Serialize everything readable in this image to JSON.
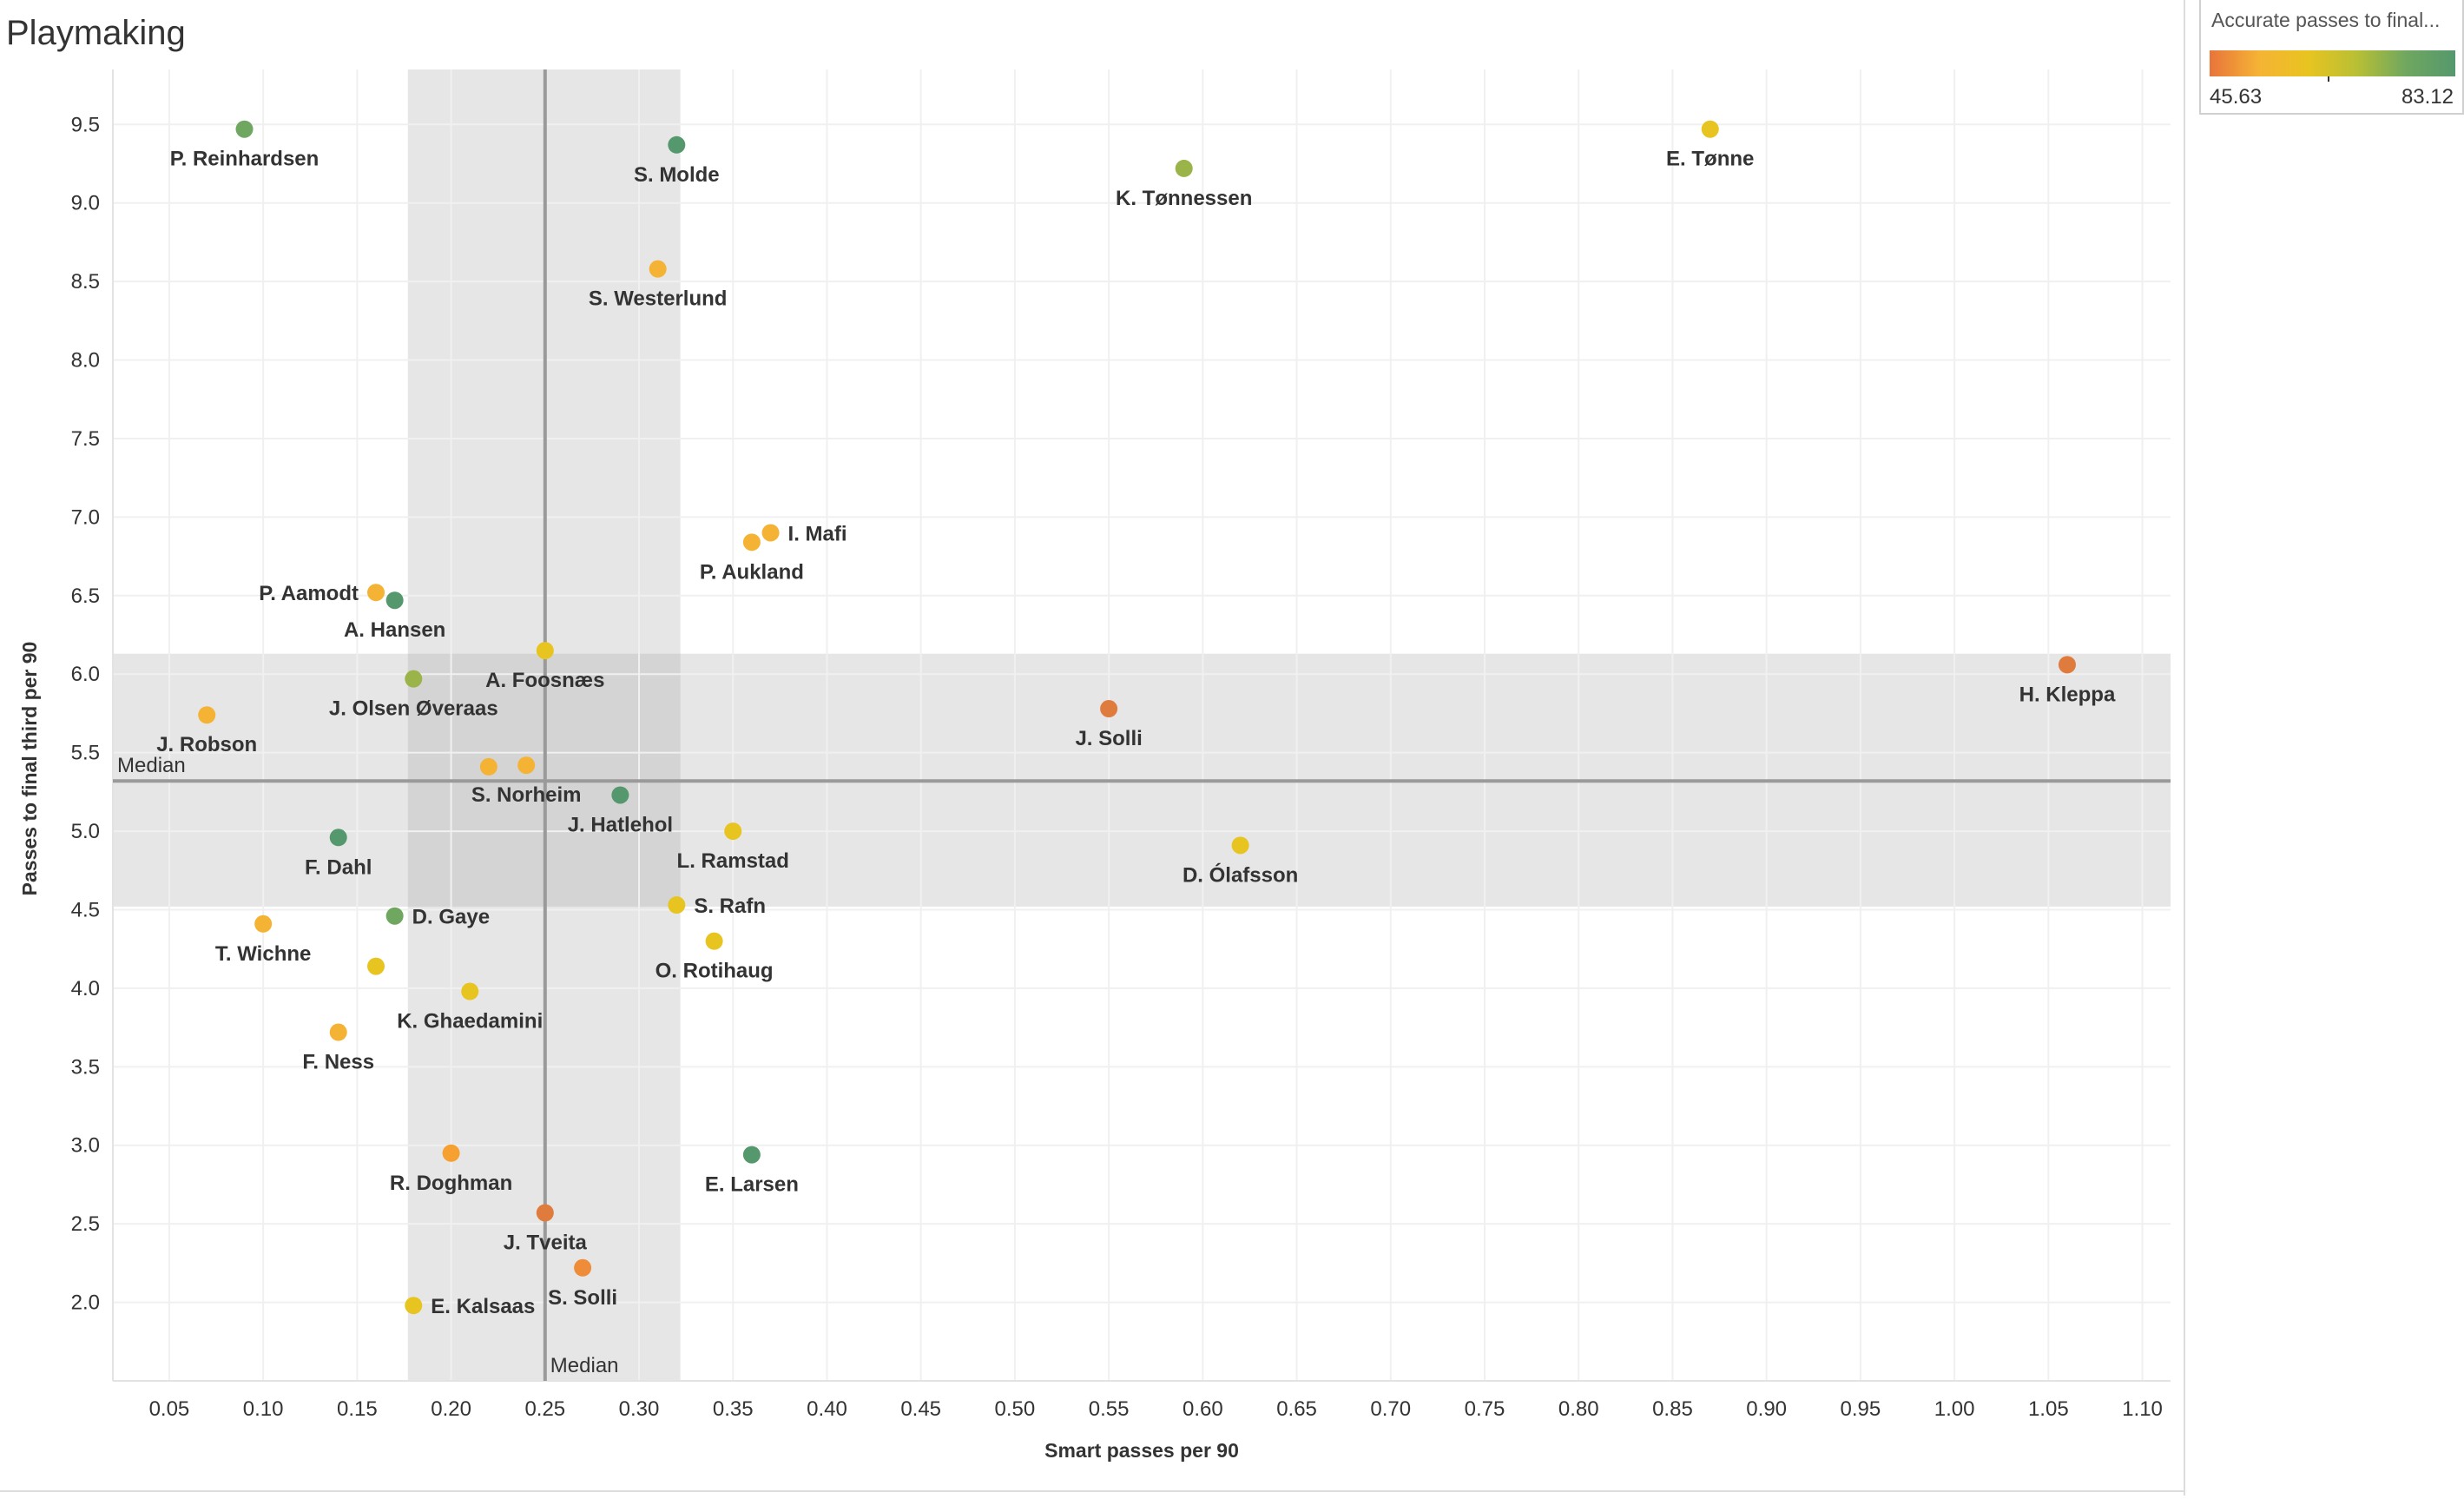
{
  "title": "Playmaking",
  "legend": {
    "title": "Accurate passes to final...",
    "min_label": "45.63",
    "max_label": "83.12",
    "colors": [
      "#e8743b",
      "#f5b335",
      "#e8c420",
      "#b8bf34",
      "#6fa760",
      "#55986d"
    ]
  },
  "chart_data": {
    "type": "scatter",
    "title": "Playmaking",
    "xlabel": "Smart passes per 90",
    "ylabel": "Passes to final third per 90",
    "xlim": [
      0.02,
      1.115
    ],
    "ylim": [
      1.5,
      9.85
    ],
    "x_ticks": [
      "0.05",
      "0.10",
      "0.15",
      "0.20",
      "0.25",
      "0.30",
      "0.35",
      "0.40",
      "0.45",
      "0.50",
      "0.55",
      "0.60",
      "0.65",
      "0.70",
      "0.75",
      "0.80",
      "0.85",
      "0.90",
      "0.95",
      "1.00",
      "1.05",
      "1.10"
    ],
    "y_ticks": [
      "2.0",
      "2.5",
      "3.0",
      "3.5",
      "4.0",
      "4.5",
      "5.0",
      "5.5",
      "6.0",
      "6.5",
      "7.0",
      "7.5",
      "8.0",
      "8.5",
      "9.0",
      "9.5"
    ],
    "grid": true,
    "x_median": {
      "value": 0.25,
      "label": "Median",
      "band": [
        0.177,
        0.322
      ]
    },
    "y_median": {
      "value": 5.32,
      "label": "Median",
      "band": [
        4.52,
        6.13
      ]
    },
    "color_metric": "Accurate passes to final...",
    "points": [
      {
        "name": "P. Reinhardsen",
        "x": 0.09,
        "y": 9.47,
        "color": "#6fa760",
        "label_pos": "below"
      },
      {
        "name": "S. Molde",
        "x": 0.32,
        "y": 9.37,
        "color": "#55986d",
        "label_pos": "below"
      },
      {
        "name": "K. Tønnessen",
        "x": 0.59,
        "y": 9.22,
        "color": "#9bb44a",
        "label_pos": "below"
      },
      {
        "name": "E. Tønne",
        "x": 0.87,
        "y": 9.47,
        "color": "#e8c420",
        "label_pos": "below"
      },
      {
        "name": "S. Westerlund",
        "x": 0.31,
        "y": 8.58,
        "color": "#f5b335",
        "label_pos": "below"
      },
      {
        "name": "I. Mafi",
        "x": 0.37,
        "y": 6.9,
        "color": "#f5b335",
        "label_pos": "right"
      },
      {
        "name": "P. Aukland",
        "x": 0.36,
        "y": 6.84,
        "color": "#f5b335",
        "label_pos": "below"
      },
      {
        "name": "P. Aamodt",
        "x": 0.16,
        "y": 6.52,
        "color": "#f5b335",
        "label_pos": "left"
      },
      {
        "name": "A. Hansen",
        "x": 0.17,
        "y": 6.47,
        "color": "#55986d",
        "label_pos": "below"
      },
      {
        "name": "A. Foosnæs",
        "x": 0.25,
        "y": 6.15,
        "color": "#e8c420",
        "label_pos": "below"
      },
      {
        "name": "J. Olsen Øveraas",
        "x": 0.18,
        "y": 5.97,
        "color": "#9bb44a",
        "label_pos": "below"
      },
      {
        "name": "J. Robson",
        "x": 0.07,
        "y": 5.74,
        "color": "#f5b335",
        "label_pos": "below"
      },
      {
        "name": "J. Solli",
        "x": 0.55,
        "y": 5.78,
        "color": "#e07b3e",
        "label_pos": "below"
      },
      {
        "name": "H. Kleppa",
        "x": 1.06,
        "y": 6.06,
        "color": "#e07b3e",
        "label_pos": "below"
      },
      {
        "name": "",
        "x": 0.22,
        "y": 5.41,
        "color": "#f5b335",
        "label_pos": "none"
      },
      {
        "name": "S. Norheim",
        "x": 0.24,
        "y": 5.42,
        "color": "#f5b335",
        "label_pos": "below"
      },
      {
        "name": "J. Hatlehol",
        "x": 0.29,
        "y": 5.23,
        "color": "#55986d",
        "label_pos": "below"
      },
      {
        "name": "F. Dahl",
        "x": 0.14,
        "y": 4.96,
        "color": "#55986d",
        "label_pos": "below"
      },
      {
        "name": "L. Ramstad",
        "x": 0.35,
        "y": 5.0,
        "color": "#e8c420",
        "label_pos": "below"
      },
      {
        "name": "D. Ólafsson",
        "x": 0.62,
        "y": 4.91,
        "color": "#e8c420",
        "label_pos": "below"
      },
      {
        "name": "S. Rafn",
        "x": 0.32,
        "y": 4.53,
        "color": "#e8c420",
        "label_pos": "right"
      },
      {
        "name": "D. Gaye",
        "x": 0.17,
        "y": 4.46,
        "color": "#6fa760",
        "label_pos": "right"
      },
      {
        "name": "T. Wichne",
        "x": 0.1,
        "y": 4.41,
        "color": "#f5b335",
        "label_pos": "below"
      },
      {
        "name": "O. Rotihaug",
        "x": 0.34,
        "y": 4.3,
        "color": "#e8c420",
        "label_pos": "below"
      },
      {
        "name": "",
        "x": 0.16,
        "y": 4.14,
        "color": "#e8c420",
        "label_pos": "none"
      },
      {
        "name": "K. Ghaedamini",
        "x": 0.21,
        "y": 3.98,
        "color": "#e8c420",
        "label_pos": "below"
      },
      {
        "name": "F. Ness",
        "x": 0.14,
        "y": 3.72,
        "color": "#f5b335",
        "label_pos": "below"
      },
      {
        "name": "R. Doghman",
        "x": 0.2,
        "y": 2.95,
        "color": "#f5a030",
        "label_pos": "below"
      },
      {
        "name": "E. Larsen",
        "x": 0.36,
        "y": 2.94,
        "color": "#55986d",
        "label_pos": "below"
      },
      {
        "name": "J. Tveita",
        "x": 0.25,
        "y": 2.57,
        "color": "#e07b3e",
        "label_pos": "below"
      },
      {
        "name": "S. Solli",
        "x": 0.27,
        "y": 2.22,
        "color": "#ef8c3a",
        "label_pos": "below"
      },
      {
        "name": "E. Kalsaas",
        "x": 0.18,
        "y": 1.98,
        "color": "#e8c420",
        "label_pos": "right"
      }
    ]
  }
}
